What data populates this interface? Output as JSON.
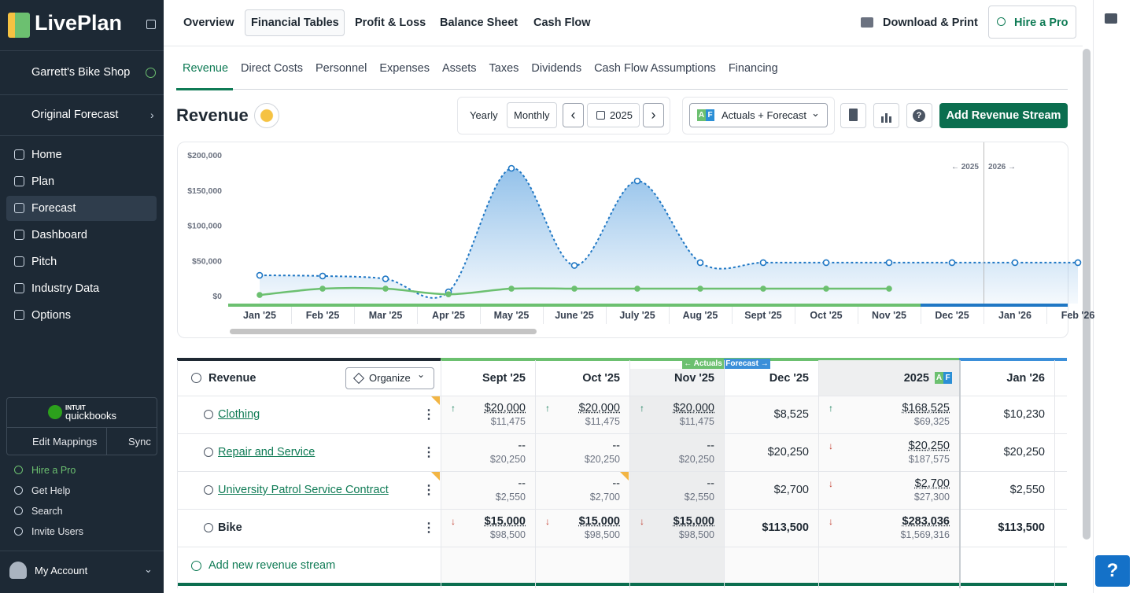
{
  "sidebar": {
    "logo": "LivePlan",
    "company": "Garrett's Bike Shop",
    "forecast": "Original Forecast",
    "nav": [
      "Home",
      "Plan",
      "Forecast",
      "Dashboard",
      "Pitch",
      "Industry Data",
      "Options"
    ],
    "active_nav": 2,
    "quickbooks": {
      "brand": "intuit",
      "name": "quickbooks",
      "actions": [
        "Edit Mappings",
        "Sync"
      ]
    },
    "links": [
      "Hire a Pro",
      "Get Help",
      "Search",
      "Invite Users"
    ],
    "account": "My Account"
  },
  "topnav": {
    "tabs": [
      "Overview",
      "Financial Tables",
      "Profit & Loss",
      "Balance Sheet",
      "Cash Flow"
    ],
    "active": 1,
    "download": "Download & Print",
    "hire": "Hire a Pro"
  },
  "subtabs": {
    "tabs": [
      "Revenue",
      "Direct Costs",
      "Personnel",
      "Expenses",
      "Assets",
      "Taxes",
      "Dividends",
      "Cash Flow Assumptions",
      "Financing"
    ],
    "active": 0
  },
  "toolbar": {
    "title": "Revenue",
    "periods": [
      "Yearly",
      "Monthly"
    ],
    "active_period": 1,
    "year": "2025",
    "badge": [
      "A",
      "F"
    ],
    "view": "Actuals + Forecast",
    "add": "Add Revenue Stream"
  },
  "chart_data": {
    "type": "line",
    "categories": [
      "Jan '25",
      "Feb '25",
      "Mar '25",
      "Apr '25",
      "May '25",
      "June '25",
      "July '25",
      "Aug '25",
      "Sept '25",
      "Oct '25",
      "Nov '25",
      "Dec '25",
      "Jan '26",
      "Feb '26"
    ],
    "series": [
      {
        "name": "Forecast",
        "color": "#1f77c4",
        "values": [
          29000,
          28000,
          24000,
          5500,
          181000,
          43000,
          163000,
          47000,
          47000,
          47000,
          47000,
          47000,
          47000,
          47000
        ]
      },
      {
        "name": "Actuals",
        "color": "#6cc070",
        "values": [
          1000,
          10000,
          10000,
          2000,
          10000,
          10000,
          10000,
          10000,
          10000,
          10000,
          10000,
          null,
          null,
          null
        ]
      }
    ],
    "ylim": [
      0,
      200000
    ],
    "yticks": [
      {
        "value": 0,
        "label": "$0"
      },
      {
        "value": 50000,
        "label": "$50,000"
      },
      {
        "value": 100000,
        "label": "$100,000"
      },
      {
        "value": 150000,
        "label": "$150,000"
      },
      {
        "value": 200000,
        "label": "$200,000"
      }
    ],
    "grid": false,
    "annotations": [
      "← 2025",
      "2026 →"
    ]
  },
  "table": {
    "title": "Revenue",
    "organize": "Organize",
    "actuals": "← Actuals",
    "forecast": "Forecast →",
    "columns": [
      "Sept '25",
      "Oct '25",
      "Nov '25",
      "Dec '25",
      "2025",
      "Jan '26"
    ],
    "shaded_column": 2,
    "forecast_from": 3,
    "badge_column": 4,
    "rows": [
      {
        "name": "Clothing",
        "link": true,
        "flag": true,
        "cells": [
          {
            "trend": "up",
            "value": "$20,000",
            "sub": "$11,475"
          },
          {
            "trend": "up",
            "value": "$20,000",
            "sub": "$11,475"
          },
          {
            "trend": "up",
            "value": "$20,000",
            "sub": "$11,475"
          },
          {
            "value": "$8,525"
          },
          {
            "trend": "up",
            "value": "$168,525",
            "sub": "$69,325"
          },
          {
            "value": "$10,230"
          }
        ]
      },
      {
        "name": "Repair and Service",
        "link": true,
        "cells": [
          {
            "value": "--",
            "sub": "$20,250"
          },
          {
            "value": "--",
            "sub": "$20,250"
          },
          {
            "value": "--",
            "sub": "$20,250"
          },
          {
            "value": "$20,250"
          },
          {
            "trend": "down",
            "value": "$20,250",
            "sub": "$187,575"
          },
          {
            "value": "$20,250"
          }
        ]
      },
      {
        "name": "University Patrol Service Contract",
        "link": true,
        "flag": true,
        "cells": [
          {
            "value": "--",
            "sub": "$2,550"
          },
          {
            "value": "--",
            "sub": "$2,700",
            "flag": true
          },
          {
            "value": "--",
            "sub": "$2,550"
          },
          {
            "value": "$2,700"
          },
          {
            "trend": "down",
            "value": "$2,700",
            "sub": "$27,300"
          },
          {
            "value": "$2,550"
          }
        ]
      },
      {
        "name": "Bike",
        "bold": true,
        "cells": [
          {
            "trend": "down",
            "value": "$15,000",
            "sub": "$98,500"
          },
          {
            "trend": "down",
            "value": "$15,000",
            "sub": "$98,500"
          },
          {
            "trend": "down",
            "value": "$15,000",
            "sub": "$98,500"
          },
          {
            "value": "$113,500"
          },
          {
            "trend": "down",
            "value": "$283,036",
            "sub": "$1,569,316"
          },
          {
            "value": "$113,500"
          }
        ]
      }
    ],
    "add": "Add new revenue stream"
  }
}
